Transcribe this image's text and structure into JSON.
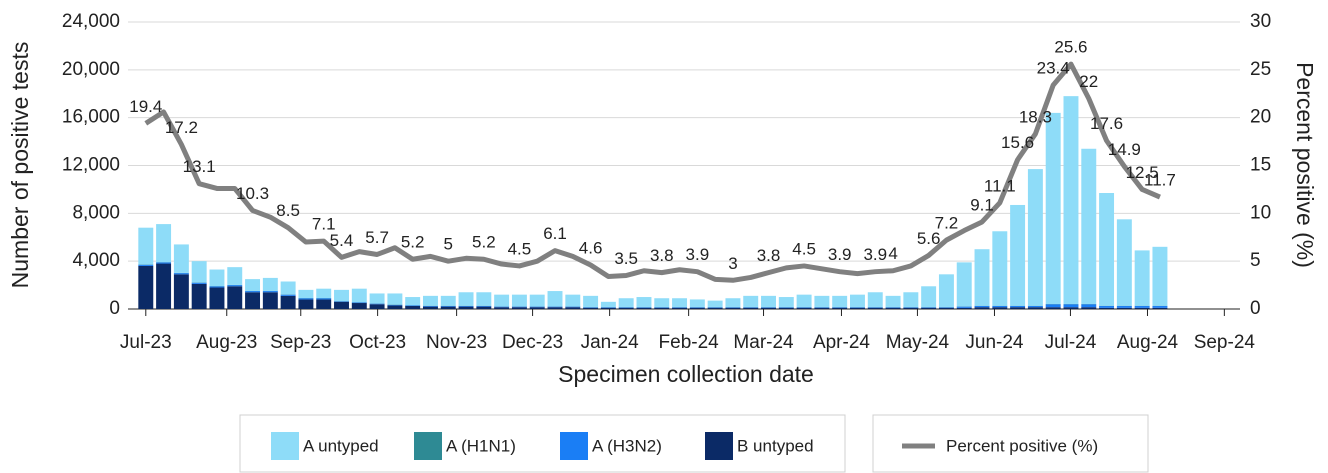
{
  "chart_data": {
    "type": "bar",
    "stacked": true,
    "x_label": "Specimen collection date",
    "y_label": "Number of positive tests",
    "y2_label": "Percent positive (%)",
    "categories": [
      null,
      null,
      null,
      null,
      null,
      null,
      null,
      null,
      null,
      null,
      null,
      null,
      null,
      null,
      null,
      null,
      null,
      null,
      null,
      null,
      null,
      null,
      null,
      null,
      null,
      null,
      null,
      null,
      null,
      null,
      null,
      null,
      null,
      null,
      null,
      null,
      null,
      null,
      null,
      null,
      null,
      null,
      null,
      null,
      null,
      null,
      null,
      null,
      null,
      null,
      null,
      null,
      null,
      null,
      null,
      null,
      null,
      null
    ],
    "xlim": [
      -1.0,
      61.5
    ],
    "xticks": [
      {
        "value": 0,
        "label": "Jul-23"
      },
      {
        "value": 4.55,
        "label": "Aug-23"
      },
      {
        "value": 8.71,
        "label": "Sep-23"
      },
      {
        "value": 13.03,
        "label": "Oct-23"
      },
      {
        "value": 17.47,
        "label": "Nov-23"
      },
      {
        "value": 21.74,
        "label": "Dec-23"
      },
      {
        "value": 26.07,
        "label": "Jan-24"
      },
      {
        "value": 30.51,
        "label": "Feb-24"
      },
      {
        "value": 34.72,
        "label": "Mar-24"
      },
      {
        "value": 39.1,
        "label": "Apr-24"
      },
      {
        "value": 43.37,
        "label": "May-24"
      },
      {
        "value": 47.7,
        "label": "Jun-24"
      },
      {
        "value": 51.97,
        "label": "Jul-24"
      },
      {
        "value": 56.3,
        "label": "Aug-24"
      },
      {
        "value": 60.62,
        "label": "Sep-24"
      }
    ],
    "ylim": [
      0,
      24000
    ],
    "yticks": [
      0,
      {
        "value": 4000,
        "label": "4,000"
      },
      {
        "value": 8000,
        "label": "8,000"
      },
      {
        "value": 12000,
        "label": "12,000"
      },
      {
        "value": 16000,
        "label": "16,000"
      },
      {
        "value": 20000,
        "label": "20,000"
      },
      {
        "value": 24000,
        "label": "24,000"
      }
    ],
    "y2lim": [
      0,
      30
    ],
    "y2ticks": [
      0,
      5,
      10,
      15,
      20,
      25,
      30
    ],
    "grid": true,
    "series": [
      {
        "name": "A untyped",
        "color": "#8edcf8",
        "values": [
          3080,
          3180,
          2380,
          1780,
          1380,
          1480,
          980,
          1080,
          1080,
          680,
          780,
          930,
          1130,
          830,
          930,
          680,
          830,
          830,
          1130,
          1130,
          980,
          980,
          980,
          1280,
          980,
          930,
          430,
          730,
          830,
          730,
          730,
          630,
          530,
          730,
          930,
          930,
          830,
          1030,
          930,
          930,
          1030,
          1230,
          930,
          1230,
          1730,
          2730,
          3680,
          4730,
          6230,
          8430,
          11430,
          15980,
          17380,
          12980,
          9430,
          7230,
          4630,
          4930
        ]
      },
      {
        "name": "A (H1N1)",
        "color": "#2e8a94",
        "values": [
          20,
          20,
          20,
          20,
          20,
          20,
          20,
          20,
          20,
          20,
          20,
          20,
          20,
          20,
          20,
          20,
          20,
          20,
          20,
          20,
          20,
          20,
          20,
          20,
          20,
          20,
          20,
          20,
          20,
          20,
          20,
          20,
          20,
          20,
          20,
          20,
          20,
          20,
          20,
          20,
          20,
          20,
          20,
          20,
          20,
          20,
          20,
          20,
          20,
          20,
          20,
          20,
          20,
          20,
          20,
          20,
          20,
          20
        ]
      },
      {
        "name": "A (H3N2)",
        "color": "#1a7ef5",
        "values": [
          100,
          100,
          100,
          100,
          100,
          100,
          100,
          100,
          100,
          100,
          100,
          50,
          50,
          50,
          50,
          50,
          50,
          50,
          50,
          50,
          50,
          50,
          50,
          50,
          50,
          50,
          50,
          50,
          50,
          50,
          50,
          50,
          50,
          50,
          50,
          50,
          50,
          50,
          50,
          50,
          50,
          50,
          50,
          50,
          50,
          50,
          100,
          100,
          100,
          100,
          100,
          250,
          250,
          250,
          150,
          150,
          150,
          150
        ]
      },
      {
        "name": "B untyped",
        "color": "#0b2a66",
        "values": [
          3600,
          3800,
          2900,
          2100,
          1800,
          1900,
          1400,
          1400,
          1100,
          800,
          800,
          600,
          500,
          400,
          300,
          250,
          200,
          200,
          200,
          200,
          150,
          150,
          150,
          150,
          150,
          100,
          100,
          100,
          100,
          100,
          100,
          100,
          100,
          100,
          100,
          100,
          100,
          100,
          100,
          100,
          100,
          100,
          100,
          100,
          100,
          100,
          100,
          150,
          150,
          150,
          150,
          150,
          150,
          150,
          100,
          100,
          100,
          100
        ]
      },
      {
        "name": "Percent positive (%)",
        "type": "line",
        "axis": "y2",
        "color": "#808080",
        "values": [
          19.4,
          20.6,
          17.2,
          13.1,
          12.6,
          12.6,
          10.3,
          9.6,
          8.5,
          7.0,
          7.1,
          5.4,
          6.0,
          5.7,
          6.4,
          5.2,
          5.5,
          5,
          5.3,
          5.2,
          4.7,
          4.5,
          5.0,
          6.1,
          5.5,
          4.6,
          3.4,
          3.5,
          4.0,
          3.8,
          4.1,
          3.9,
          3.1,
          3,
          3.3,
          3.8,
          4.3,
          4.5,
          4.2,
          3.9,
          3.7,
          3.9,
          4,
          4.5,
          5.6,
          7.2,
          8.2,
          9.1,
          11.1,
          15.6,
          18.3,
          23.4,
          25.6,
          22,
          17.6,
          14.9,
          12.5,
          11.7
        ],
        "value_labels": [
          "19.4",
          null,
          "17.2",
          "13.1",
          null,
          null,
          "10.3",
          null,
          "8.5",
          null,
          "7.1",
          "5.4",
          null,
          "5.7",
          null,
          "5.2",
          null,
          "5",
          null,
          "5.2",
          null,
          "4.5",
          null,
          "6.1",
          null,
          "4.6",
          null,
          "3.5",
          null,
          "3.8",
          null,
          "3.9",
          null,
          "3",
          null,
          "3.8",
          null,
          "4.5",
          null,
          "3.9",
          null,
          "3.9",
          "4",
          null,
          "5.6",
          "7.2",
          null,
          "9.1",
          "11.1",
          "15.6",
          "18.3",
          "23.4",
          "25.6",
          "22",
          "17.6",
          "14.9",
          "12.5",
          "11.7"
        ]
      }
    ]
  }
}
